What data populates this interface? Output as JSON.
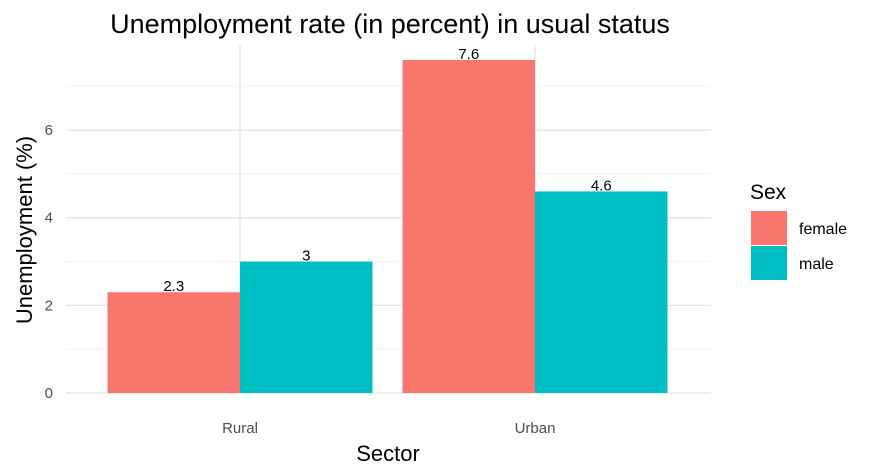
{
  "chart_data": {
    "type": "bar",
    "title": "Unemployment rate (in percent) in usual status",
    "xlabel": "Sector",
    "ylabel": "Unemployment (%)",
    "categories": [
      "Rural",
      "Urban"
    ],
    "series": [
      {
        "name": "female",
        "values": [
          2.3,
          7.6
        ],
        "labels": [
          "2.3",
          "7.6"
        ],
        "color": "#F8766D"
      },
      {
        "name": "male",
        "values": [
          3,
          4.6
        ],
        "labels": [
          "3",
          "4.6"
        ],
        "color": "#00BFC4"
      }
    ],
    "ylim": [
      0,
      7.6
    ],
    "yticks": [
      0,
      2,
      4,
      6
    ],
    "ytick_labels": [
      "0",
      "2",
      "4",
      "6"
    ],
    "grid": true,
    "legend": {
      "title": "Sex",
      "position": "right"
    }
  }
}
